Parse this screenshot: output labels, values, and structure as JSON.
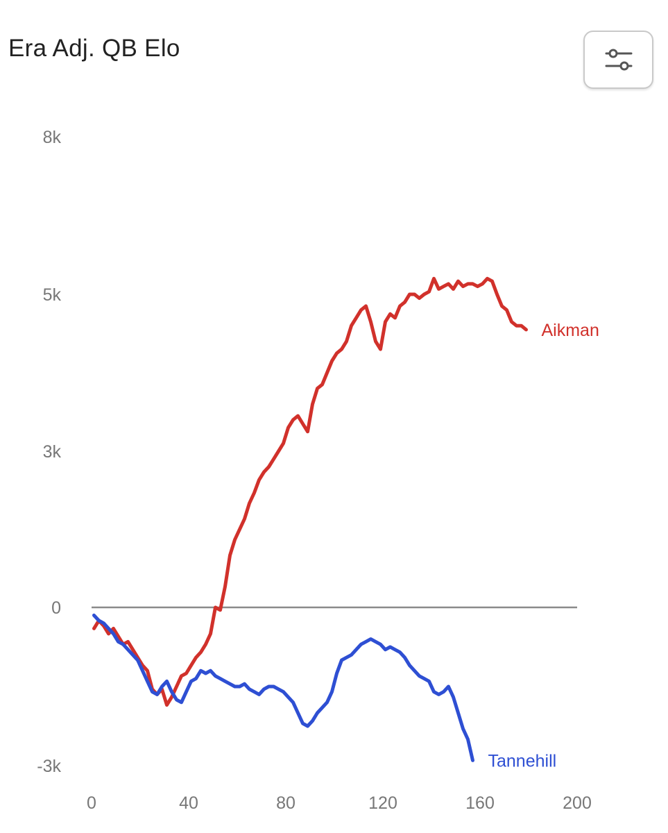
{
  "header": {
    "title": "Era Adj. QB Elo",
    "filter_icon": "sliders-icon"
  },
  "colors": {
    "aikman": "#d1312b",
    "tannehill": "#2e4fd3",
    "zero_line": "#8a8a8a",
    "tick_text": "#777777"
  },
  "chart_data": {
    "type": "line",
    "title": "Era Adj. QB Elo",
    "xlabel": "",
    "ylabel": "",
    "xlim": [
      0,
      200
    ],
    "ylim": [
      -3000,
      8000
    ],
    "x_ticks": [
      0,
      40,
      80,
      120,
      160,
      200
    ],
    "x_tick_labels": [
      "0",
      "40",
      "80",
      "120",
      "160",
      "200"
    ],
    "y_ticks": [
      -3000,
      0,
      3000,
      5000,
      8000
    ],
    "y_tick_labels": [
      "-3k",
      "0",
      "3k",
      "5k",
      "8k"
    ],
    "reference_line": 0,
    "grid": false,
    "legend": "end-of-line labels",
    "series": [
      {
        "name": "Aikman",
        "color": "#d1312b",
        "x": [
          1,
          3,
          5,
          7,
          9,
          11,
          13,
          15,
          17,
          19,
          21,
          23,
          25,
          27,
          29,
          31,
          33,
          35,
          37,
          39,
          41,
          43,
          45,
          47,
          49,
          51,
          53,
          55,
          57,
          59,
          61,
          63,
          65,
          67,
          69,
          71,
          73,
          75,
          77,
          79,
          81,
          83,
          85,
          87,
          89,
          91,
          93,
          95,
          97,
          99,
          101,
          103,
          105,
          107,
          109,
          111,
          113,
          115,
          117,
          119,
          121,
          123,
          125,
          127,
          129,
          131,
          133,
          135,
          137,
          139,
          141,
          143,
          145,
          147,
          149,
          151,
          153,
          155,
          157,
          159,
          161,
          163,
          165,
          167,
          169,
          171,
          173,
          175,
          177,
          179
        ],
        "y": [
          -400,
          -250,
          -350,
          -500,
          -400,
          -550,
          -700,
          -650,
          -800,
          -950,
          -1100,
          -1200,
          -1550,
          -1650,
          -1550,
          -1850,
          -1700,
          -1500,
          -1300,
          -1250,
          -1100,
          -950,
          -850,
          -700,
          -500,
          0,
          -50,
          400,
          1000,
          1300,
          1500,
          1700,
          2000,
          2200,
          2450,
          2600,
          2700,
          2850,
          3000,
          3100,
          3300,
          3400,
          3450,
          3350,
          3250,
          3600,
          3800,
          3850,
          4000,
          4150,
          4250,
          4300,
          4400,
          4600,
          4700,
          4800,
          4850,
          4650,
          4400,
          4300,
          4650,
          4750,
          4700,
          4850,
          4900,
          5000,
          5000,
          4950,
          5000,
          5050,
          5300,
          5100,
          5150,
          5200,
          5100,
          5250,
          5150,
          5200,
          5200,
          5150,
          5200,
          5300,
          5250,
          5000,
          4850,
          4800,
          4650,
          4600,
          4600,
          4550
        ]
      },
      {
        "name": "Tannehill",
        "color": "#2e4fd3",
        "x": [
          1,
          3,
          5,
          7,
          9,
          11,
          13,
          15,
          17,
          19,
          21,
          23,
          25,
          27,
          29,
          31,
          33,
          35,
          37,
          39,
          41,
          43,
          45,
          47,
          49,
          51,
          53,
          55,
          57,
          59,
          61,
          63,
          65,
          67,
          69,
          71,
          73,
          75,
          77,
          79,
          81,
          83,
          85,
          87,
          89,
          91,
          93,
          95,
          97,
          99,
          101,
          103,
          105,
          107,
          109,
          111,
          113,
          115,
          117,
          119,
          121,
          123,
          125,
          127,
          129,
          131,
          133,
          135,
          137,
          139,
          141,
          143,
          145,
          147,
          149,
          151,
          153,
          155,
          157
        ],
        "y": [
          -150,
          -250,
          -300,
          -400,
          -500,
          -650,
          -700,
          -800,
          -900,
          -1000,
          -1200,
          -1400,
          -1600,
          -1650,
          -1500,
          -1400,
          -1600,
          -1750,
          -1800,
          -1600,
          -1400,
          -1350,
          -1200,
          -1250,
          -1200,
          -1300,
          -1350,
          -1400,
          -1450,
          -1500,
          -1500,
          -1450,
          -1550,
          -1600,
          -1650,
          -1550,
          -1500,
          -1500,
          -1550,
          -1600,
          -1700,
          -1800,
          -2000,
          -2200,
          -2250,
          -2150,
          -2000,
          -1900,
          -1800,
          -1600,
          -1250,
          -1000,
          -950,
          -900,
          -800,
          -700,
          -650,
          -600,
          -650,
          -700,
          -800,
          -750,
          -800,
          -850,
          -950,
          -1100,
          -1200,
          -1300,
          -1350,
          -1400,
          -1600,
          -1650,
          -1600,
          -1500,
          -1700,
          -2000,
          -2300,
          -2500,
          -2900
        ]
      }
    ]
  }
}
